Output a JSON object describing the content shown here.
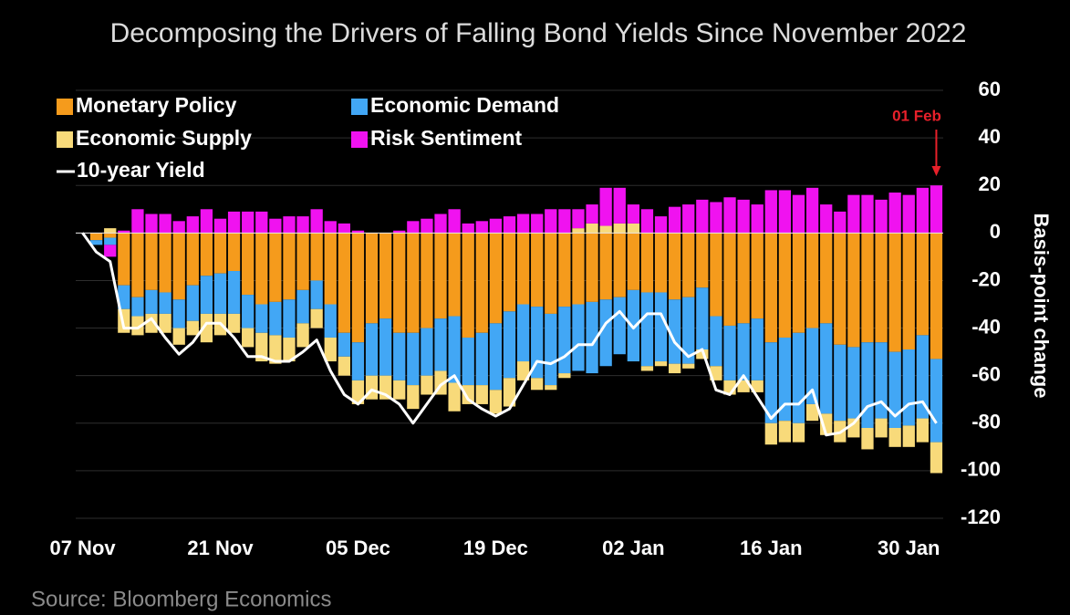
{
  "chart_data": {
    "type": "bar",
    "title": "Decomposing the Drivers of Falling Bond Yields Since November 2022",
    "source": "Source: Bloomberg Economics",
    "y_label": "Basis-point change",
    "annotation": "01 Feb",
    "categories": [
      "07 Nov",
      null,
      null,
      null,
      null,
      null,
      null,
      null,
      null,
      null,
      "21 Nov",
      null,
      null,
      null,
      null,
      null,
      null,
      null,
      null,
      null,
      "05 Dec",
      null,
      null,
      null,
      null,
      null,
      null,
      null,
      null,
      null,
      "19 Dec",
      null,
      null,
      null,
      null,
      null,
      null,
      null,
      null,
      null,
      "02 Jan",
      null,
      null,
      null,
      null,
      null,
      null,
      null,
      null,
      null,
      "16 Jan",
      null,
      null,
      null,
      null,
      null,
      null,
      null,
      null,
      null,
      "30 Jan",
      null,
      null
    ],
    "series": [
      {
        "name": "Monetary Policy",
        "color": "#f59b1c",
        "values": [
          0,
          -3,
          -2,
          -22,
          -27,
          -24,
          -25,
          -28,
          -22,
          -18,
          -17,
          -16,
          -26,
          -30,
          -29,
          -28,
          -24,
          -20,
          -30,
          -42,
          -46,
          -38,
          -36,
          -42,
          -42,
          -40,
          -36,
          -35,
          -44,
          -42,
          -38,
          -33,
          -30,
          -31,
          -34,
          -31,
          -30,
          -29,
          -28,
          -27,
          -24,
          -25,
          -25,
          -28,
          -27,
          -23,
          -35,
          -39,
          -38,
          -36,
          -46,
          -44,
          -42,
          -40,
          -38,
          -47,
          -48,
          -46,
          -46,
          -50,
          -49,
          -43,
          -53
        ]
      },
      {
        "name": "Economic Demand",
        "color": "#42a7f5",
        "values": [
          0,
          -2,
          -3,
          -10,
          -8,
          -10,
          -9,
          -12,
          -15,
          -16,
          -17,
          -18,
          -14,
          -12,
          -14,
          -16,
          -14,
          -12,
          -14,
          -10,
          -16,
          -22,
          -24,
          -20,
          -22,
          -20,
          -22,
          -28,
          -20,
          -22,
          -28,
          -28,
          -24,
          -30,
          -30,
          -28,
          -28,
          -30,
          -28,
          -24,
          -30,
          -31,
          -29,
          -27,
          -28,
          -26,
          -21,
          -23,
          -24,
          -26,
          -34,
          -35,
          -38,
          -32,
          -38,
          -32,
          -30,
          -36,
          -32,
          -32,
          -32,
          -35,
          -35
        ]
      },
      {
        "name": "Economic Supply",
        "color": "#f8da7a",
        "values": [
          0,
          0,
          2,
          -10,
          -8,
          -8,
          -8,
          -7,
          -6,
          -12,
          -9,
          -8,
          -8,
          -12,
          -12,
          -10,
          -10,
          -8,
          -10,
          -8,
          -10,
          -10,
          -10,
          -8,
          -10,
          -8,
          -10,
          -12,
          -8,
          -8,
          -10,
          -12,
          -8,
          -5,
          -2,
          -2,
          2,
          4,
          3,
          4,
          4,
          -2,
          -2,
          -4,
          -2,
          -4,
          -6,
          -6,
          -5,
          -5,
          -9,
          -9,
          -8,
          -7,
          -9,
          -9,
          -8,
          -9,
          -8,
          -8,
          -9,
          -10,
          -13
        ]
      },
      {
        "name": "Risk Sentiment",
        "color": "#f012f0",
        "values": [
          0,
          0,
          -5,
          1,
          10,
          8,
          8,
          5,
          7,
          10,
          6,
          9,
          9,
          9,
          6,
          7,
          7,
          10,
          5,
          4,
          1,
          0,
          0,
          1,
          5,
          6,
          8,
          10,
          4,
          5,
          6,
          7,
          8,
          8,
          10,
          10,
          8,
          8,
          16,
          15,
          8,
          10,
          7,
          11,
          12,
          14,
          13,
          15,
          14,
          12,
          18,
          18,
          16,
          19,
          12,
          9,
          16,
          16,
          14,
          17,
          16,
          19,
          20
        ]
      }
    ],
    "line": {
      "name": "10-year Yield",
      "color": "#ffffff",
      "values": [
        0,
        -8,
        -12,
        -40,
        -40,
        -36,
        -44,
        -51,
        -46,
        -38,
        -38,
        -44,
        -52,
        -52,
        -54,
        -54,
        -50,
        -45,
        -58,
        -68,
        -72,
        -66,
        -68,
        -72,
        -80,
        -72,
        -64,
        -60,
        -70,
        -74,
        -77,
        -74,
        -64,
        -54,
        -55,
        -52,
        -47,
        -47,
        -38,
        -33,
        -40,
        -34,
        -34,
        -46,
        -52,
        -49,
        -66,
        -68,
        -60,
        -69,
        -78,
        -72,
        -72,
        -66,
        -85,
        -84,
        -80,
        -73,
        -71,
        -77,
        -72,
        -71,
        -80
      ]
    },
    "ylim": [
      -120,
      60
    ],
    "yticks": [
      60,
      40,
      20,
      0,
      -20,
      -40,
      -60,
      -80,
      -100,
      -120
    ],
    "grid": true,
    "annotation_color": "#e8202a"
  }
}
